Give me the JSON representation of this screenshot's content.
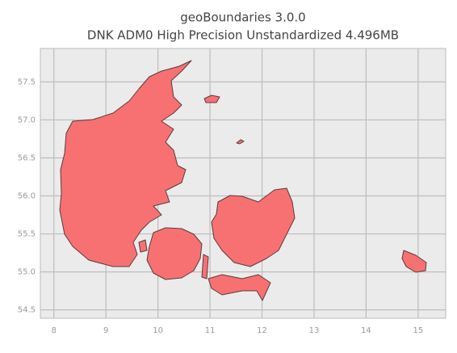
{
  "chart_data": {
    "type": "map",
    "title": "geoBoundaries 3.0.0",
    "subtitle": "DNK ADM0 High Precision Unstandardized 4.496MB",
    "xlim": [
      7.74,
      15.53
    ],
    "ylim": [
      54.39,
      57.94
    ],
    "xticks": [
      8,
      9,
      10,
      11,
      12,
      13,
      14,
      15
    ],
    "yticks": [
      {
        "value": 54.5,
        "label": "54.5"
      },
      {
        "value": 55,
        "label": "55.0"
      },
      {
        "value": 55.5,
        "label": "55.5"
      },
      {
        "value": 56,
        "label": "56.0"
      },
      {
        "value": 56.5,
        "label": "56.5"
      },
      {
        "value": 57,
        "label": "57.0"
      },
      {
        "value": 57.5,
        "label": "57.5"
      }
    ],
    "grid": true,
    "color": "#f77173"
  }
}
